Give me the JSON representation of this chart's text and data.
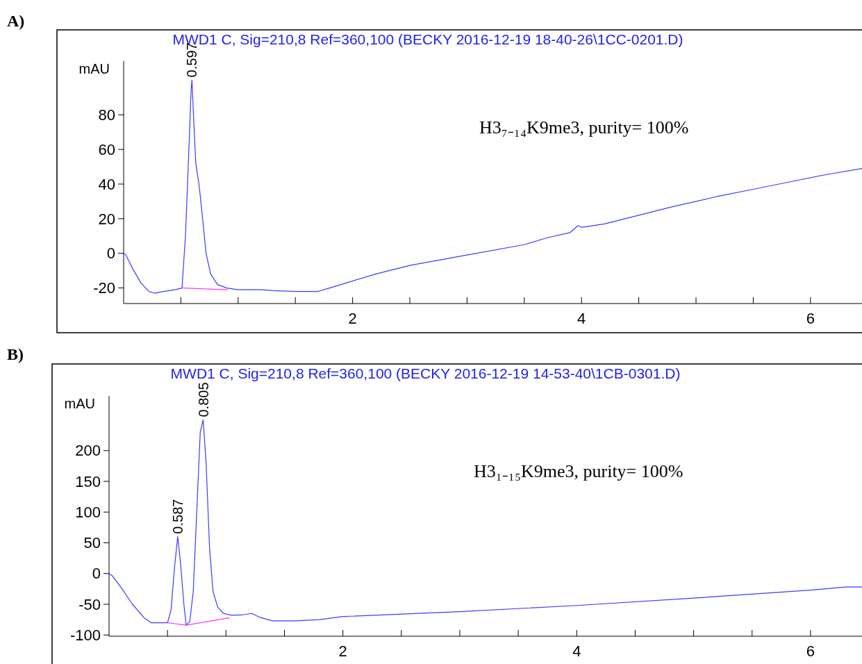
{
  "chart_data": [
    {
      "type": "line",
      "title": "MWD1 C, Sig=210,8 Ref=360,100 (BECKY 2016-12-19 18-40-26\\1CC-0201.D)",
      "ylabel": "mAU",
      "annotations": [
        "A)",
        "H3₇₋₁₄K9me3, purity= 100%",
        {
          "text": "0.597",
          "x": 0.597,
          "y": 100
        }
      ],
      "xlim": [
        0,
        6.45
      ],
      "ylim": [
        -29,
        111
      ],
      "xticks": [
        {
          "value": 0.5,
          "label": null
        },
        {
          "value": 1,
          "label": null
        },
        {
          "value": 1.5,
          "label": null
        },
        2,
        {
          "value": 2.5,
          "label": null
        },
        {
          "value": 3,
          "label": null
        },
        {
          "value": 3.5,
          "label": null
        },
        4,
        {
          "value": 4.5,
          "label": null
        },
        {
          "value": 5,
          "label": null
        },
        {
          "value": 5.5,
          "label": null
        },
        6
      ],
      "yticks": [
        -20,
        0,
        20,
        40,
        60,
        80
      ],
      "grid": false,
      "series": [
        {
          "color": "#3b3bff",
          "x": [
            0,
            0.02,
            0.08,
            0.15,
            0.22,
            0.27,
            0.35,
            0.45,
            0.51,
            0.54,
            0.57,
            0.59,
            0.597,
            0.61,
            0.63,
            0.66,
            0.69,
            0.72,
            0.76,
            0.82,
            0.9,
            1.0,
            1.2,
            1.3,
            1.5,
            1.7,
            1.8,
            2.0,
            2.2,
            2.5,
            3.0,
            3.5,
            3.7,
            3.9,
            3.97,
            4.0,
            4.2,
            4.5,
            4.8,
            5.2,
            5.5,
            5.8,
            6.1,
            6.45
          ],
          "values": [
            0,
            -1,
            -9,
            -17,
            -22,
            -23,
            -22,
            -21,
            -20,
            10,
            60,
            95,
            100,
            80,
            52,
            39,
            20,
            0,
            -12,
            -18,
            -20,
            -21,
            -21,
            -21.5,
            -22,
            -22,
            -20,
            -16,
            -12,
            -7,
            -1,
            5,
            9,
            12,
            16,
            15,
            17,
            22,
            27,
            33,
            37,
            41,
            45,
            49
          ]
        },
        {
          "color": "#ff33ff",
          "x": [
            0.51,
            0.91
          ],
          "values": [
            -20,
            -21
          ]
        }
      ]
    },
    {
      "type": "line",
      "title": "MWD1 C, Sig=210,8 Ref=360,100 (BECKY 2016-12-19 14-53-40\\1CB-0301.D)",
      "ylabel": "mAU",
      "annotations": [
        "B)",
        "H3₁₋₁₅K9me3, purity= 100%",
        {
          "text": "0.587",
          "x": 0.587,
          "y": 60
        },
        {
          "text": "0.805",
          "x": 0.805,
          "y": 250
        }
      ],
      "xlim": [
        0,
        6.44
      ],
      "ylim": [
        -102,
        289
      ],
      "xticks": [
        {
          "value": 0.5,
          "label": null
        },
        {
          "value": 1,
          "label": null
        },
        {
          "value": 1.5,
          "label": null
        },
        2,
        {
          "value": 2.5,
          "label": null
        },
        {
          "value": 3,
          "label": null
        },
        {
          "value": 3.5,
          "label": null
        },
        4,
        {
          "value": 4.5,
          "label": null
        },
        {
          "value": 5,
          "label": null
        },
        {
          "value": 5.5,
          "label": null
        },
        6
      ],
      "yticks": [
        -100,
        -50,
        0,
        50,
        100,
        150,
        200
      ],
      "grid": false,
      "series": [
        {
          "color": "#3b3bff",
          "x": [
            0,
            0.03,
            0.1,
            0.2,
            0.3,
            0.36,
            0.45,
            0.5,
            0.53,
            0.56,
            0.587,
            0.61,
            0.64,
            0.66,
            0.69,
            0.72,
            0.75,
            0.78,
            0.805,
            0.83,
            0.86,
            0.89,
            0.93,
            0.98,
            1.05,
            1.15,
            1.22,
            1.3,
            1.4,
            1.6,
            1.8,
            2.0,
            3.0,
            4.0,
            5.0,
            6.0,
            6.3,
            6.44
          ],
          "values": [
            0,
            -4,
            -22,
            -50,
            -72,
            -80,
            -80,
            -80,
            -60,
            10,
            60,
            20,
            -50,
            -84,
            -78,
            -30,
            100,
            230,
            250,
            180,
            40,
            -30,
            -55,
            -65,
            -68,
            -67,
            -65,
            -72,
            -77,
            -77,
            -75,
            -70,
            -62,
            -52,
            -40,
            -27,
            -22,
            -22
          ]
        },
        {
          "color": "#ff33ff",
          "x": [
            0.5,
            0.66,
            1.03
          ],
          "values": [
            -80,
            -84,
            -72
          ]
        }
      ]
    }
  ]
}
